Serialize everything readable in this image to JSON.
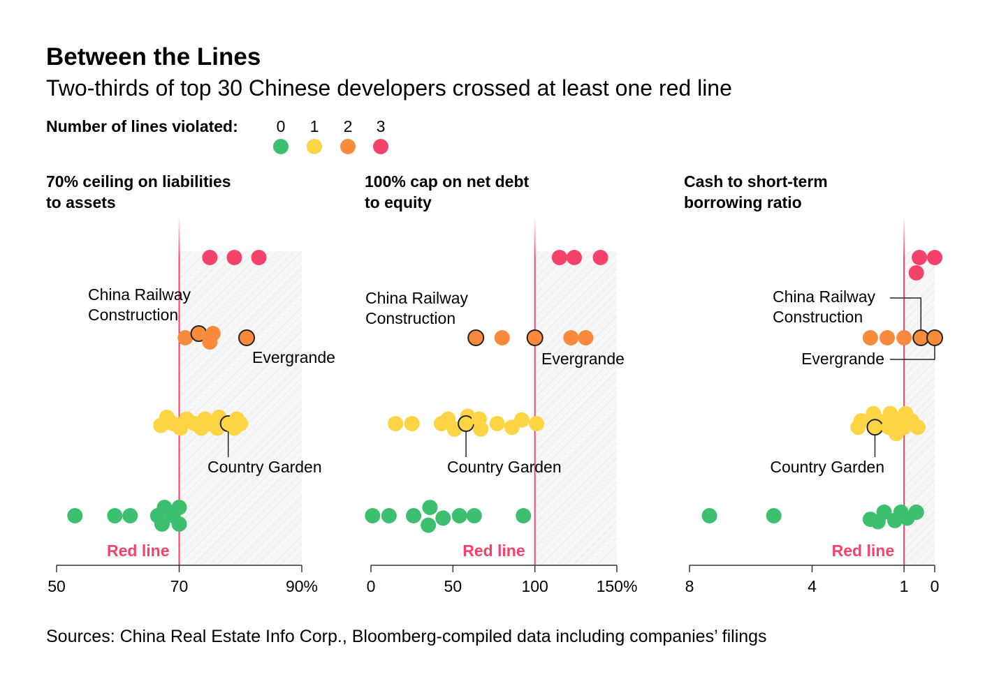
{
  "title": "Between the Lines",
  "subtitle": "Two-thirds of top 30 Chinese developers crossed at least one red line",
  "legend": {
    "label": "Number of lines violated:",
    "items": [
      {
        "value": "0",
        "color": "#3cbf6e"
      },
      {
        "value": "1",
        "color": "#fdd444"
      },
      {
        "value": "2",
        "color": "#fb8b3c"
      },
      {
        "value": "3",
        "color": "#f5426b"
      }
    ]
  },
  "source": "Sources: China Real Estate Info Corp., Bloomberg-compiled data including companies’ filings",
  "chart_data": [
    {
      "type": "scatter",
      "title_lines": [
        "70% ceiling on liabilities",
        "to assets"
      ],
      "xlim": [
        50,
        90
      ],
      "reverse": false,
      "redline": 70,
      "redline_label": "Red line",
      "ticks": [
        50,
        70,
        90
      ],
      "tick_labels": [
        "50",
        "70",
        "90%"
      ],
      "groups": {
        "3": [
          [
            75,
            0
          ],
          [
            79,
            0
          ],
          [
            83,
            0
          ]
        ],
        "2": [
          [
            71,
            0
          ],
          [
            73.2,
            0.5
          ],
          [
            75.5,
            0.5
          ],
          [
            75,
            -0.5
          ],
          [
            81,
            0
          ]
        ],
        "1": [
          [
            67,
            -0.2
          ],
          [
            68,
            0.7
          ],
          [
            69,
            0
          ],
          [
            70.2,
            -0.5
          ],
          [
            71.2,
            0.5
          ],
          [
            73.6,
            -0.5
          ],
          [
            72.5,
            0
          ],
          [
            74.2,
            0.5
          ],
          [
            75,
            0
          ],
          [
            76.2,
            -0.5
          ],
          [
            76.5,
            0.7
          ],
          [
            78,
            0
          ],
          [
            79,
            -0.5
          ],
          [
            79.4,
            0.5
          ],
          [
            80,
            0
          ]
        ],
        "0": [
          [
            53,
            0
          ],
          [
            59.5,
            0
          ],
          [
            62,
            0
          ],
          [
            66.5,
            0
          ],
          [
            67.6,
            0.7
          ],
          [
            67.2,
            -0.7
          ],
          [
            69,
            0
          ],
          [
            70,
            0.7
          ],
          [
            70,
            -0.7
          ]
        ]
      },
      "highlights": [
        {
          "group": "2",
          "index": 1,
          "label": "China Railway Construction"
        },
        {
          "group": "2",
          "index": 4,
          "label": "Evergrande"
        },
        {
          "group": "1",
          "index": 11,
          "label": "Country Garden"
        }
      ]
    },
    {
      "type": "scatter",
      "title_lines": [
        "100% cap on net debt",
        "to equity"
      ],
      "xlim": [
        0,
        150
      ],
      "reverse": false,
      "redline": 100,
      "redline_label": "Red line",
      "ticks": [
        0,
        50,
        100,
        150
      ],
      "tick_labels": [
        "0",
        "50",
        "100",
        "150%"
      ],
      "groups": {
        "3": [
          [
            115,
            0
          ],
          [
            124,
            0
          ],
          [
            140,
            0
          ]
        ],
        "2": [
          [
            64,
            0
          ],
          [
            80,
            0
          ],
          [
            100,
            0
          ],
          [
            122,
            0
          ],
          [
            131,
            0
          ]
        ],
        "1": [
          [
            15,
            0
          ],
          [
            25,
            0
          ],
          [
            43,
            0
          ],
          [
            47,
            0.5
          ],
          [
            51,
            -0.6
          ],
          [
            59,
            0.8
          ],
          [
            58,
            0
          ],
          [
            67,
            -0.6
          ],
          [
            66,
            0.5
          ],
          [
            77,
            0
          ],
          [
            86,
            -0.4
          ],
          [
            92,
            0.4
          ],
          [
            101,
            0
          ]
        ],
        "0": [
          [
            1,
            0
          ],
          [
            11,
            0
          ],
          [
            26,
            0
          ],
          [
            35,
            -0.8
          ],
          [
            36,
            0.7
          ],
          [
            44,
            -0.2
          ],
          [
            54,
            0
          ],
          [
            63,
            0
          ],
          [
            93,
            0
          ]
        ]
      },
      "highlights": [
        {
          "group": "2",
          "index": 0,
          "label": "China Railway Construction"
        },
        {
          "group": "2",
          "index": 2,
          "label": "Evergrande"
        },
        {
          "group": "1",
          "index": 6,
          "label": "Country Garden"
        }
      ]
    },
    {
      "type": "scatter",
      "title_lines": [
        "Cash to short-term",
        "borrowing ratio"
      ],
      "xlim": [
        8,
        0
      ],
      "reverse": true,
      "redline": 1,
      "redline_label": "Red line",
      "ticks": [
        8,
        4,
        1,
        0
      ],
      "tick_labels": [
        "8",
        "4",
        "1",
        "0"
      ],
      "groups": {
        "3": [
          [
            0.5,
            0
          ],
          [
            0,
            0
          ],
          [
            0.6,
            -1
          ]
        ],
        "2": [
          [
            2.1,
            0
          ],
          [
            1.55,
            0
          ],
          [
            1,
            0
          ],
          [
            0.45,
            0
          ],
          [
            0,
            0
          ]
        ],
        "1": [
          [
            2.0,
            1.1
          ],
          [
            1.45,
            1.1
          ],
          [
            0.95,
            1.1
          ],
          [
            2.4,
            0.3
          ],
          [
            1.85,
            0.3
          ],
          [
            1.3,
            0.3
          ],
          [
            0.75,
            0.3
          ],
          [
            2.5,
            -0.4
          ],
          [
            1.95,
            -0.4
          ],
          [
            1.5,
            -0.4
          ],
          [
            1.0,
            -0.4
          ],
          [
            0.55,
            -0.4
          ],
          [
            1.25,
            -1.1
          ]
        ],
        "0": [
          [
            7.35,
            0
          ],
          [
            5.25,
            0
          ],
          [
            2.1,
            -0.3
          ],
          [
            1.65,
            0.3
          ],
          [
            1.85,
            -0.5
          ],
          [
            1.1,
            0.3
          ],
          [
            1.3,
            -0.4
          ],
          [
            0.9,
            -0.2
          ],
          [
            0.6,
            0.3
          ]
        ]
      },
      "highlights": [
        {
          "group": "2",
          "index": 3,
          "label": "China Railway Construction"
        },
        {
          "group": "2",
          "index": 4,
          "label": "Evergrande"
        },
        {
          "group": "1",
          "index": 8,
          "label": "Country Garden"
        }
      ]
    }
  ]
}
